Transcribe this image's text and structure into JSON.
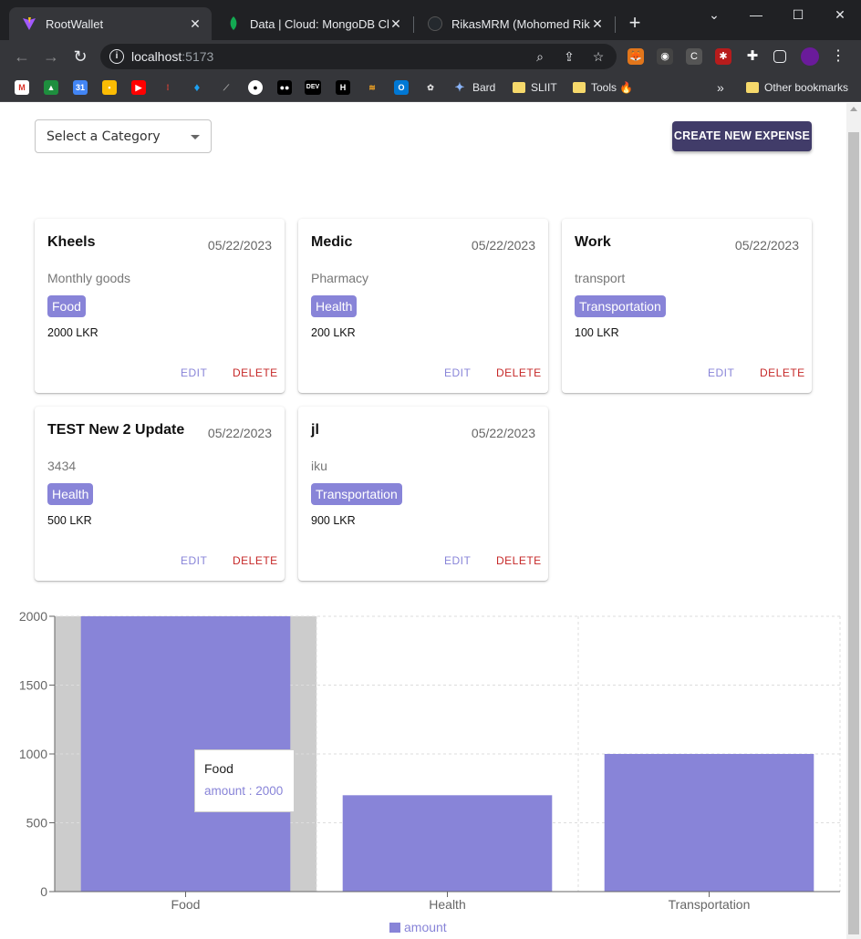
{
  "browser": {
    "tabs": [
      {
        "title": "RootWallet",
        "active": true
      },
      {
        "title": "Data | Cloud: MongoDB Cloud",
        "active": false
      },
      {
        "title": "RikasMRM (Mohomed Rikas)",
        "active": false
      }
    ],
    "url_host": "localhost",
    "url_port": ":5173",
    "bookmarks": [
      "Bard",
      "SLIIT",
      "Tools 🔥"
    ],
    "other_bookmarks": "Other bookmarks",
    "more": "»"
  },
  "filter": {
    "placeholder": "Select a Category"
  },
  "create_button": "CREATE NEW EXPENSE",
  "expenses": [
    {
      "title": "Kheels",
      "date": "05/22/2023",
      "description": "Monthly goods",
      "category": "Food",
      "amount": "2000 LKR"
    },
    {
      "title": "Medic",
      "date": "05/22/2023",
      "description": "Pharmacy",
      "category": "Health",
      "amount": "200 LKR"
    },
    {
      "title": "Work",
      "date": "05/22/2023",
      "description": "transport",
      "category": "Transportation",
      "amount": "100 LKR"
    },
    {
      "title": "TEST New 2 Update",
      "date": "05/22/2023",
      "description": "3434",
      "category": "Health",
      "amount": "500 LKR"
    },
    {
      "title": "jl",
      "date": "05/22/2023",
      "description": "iku",
      "category": "Transportation",
      "amount": "900 LKR"
    }
  ],
  "card_actions": {
    "edit": "EDIT",
    "delete": "DELETE"
  },
  "colors": {
    "accent": "#8884d8",
    "button": "#413c69",
    "delete": "#c62828"
  },
  "chart_data": {
    "type": "bar",
    "categories": [
      "Food",
      "Health",
      "Transportation"
    ],
    "series": [
      {
        "name": "amount",
        "values": [
          2000,
          700,
          1000
        ]
      }
    ],
    "yticks": [
      0,
      500,
      1000,
      1500,
      2000
    ],
    "ylim": [
      0,
      2000
    ],
    "grid": true,
    "legend": "bottom",
    "tooltip": {
      "label": "Food",
      "text": "amount : 2000"
    }
  }
}
